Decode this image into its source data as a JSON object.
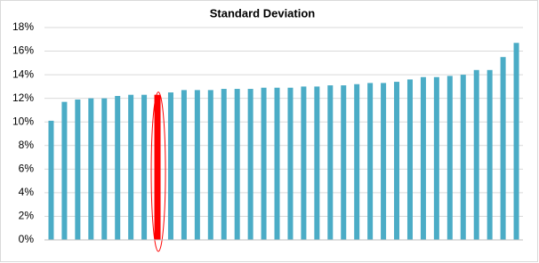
{
  "chart_data": {
    "type": "bar",
    "title": "Standard Deviation",
    "categories": [
      null,
      null,
      null,
      null,
      null,
      null,
      null,
      null,
      null,
      null,
      null,
      null,
      null,
      null,
      null,
      null,
      null,
      null,
      null,
      null,
      null,
      null,
      null,
      null,
      null,
      null,
      null,
      null,
      null,
      null,
      null,
      null,
      null,
      null,
      null,
      null
    ],
    "values": [
      10.1,
      11.7,
      11.9,
      12.0,
      12.0,
      12.2,
      12.3,
      12.3,
      12.3,
      12.5,
      12.7,
      12.7,
      12.7,
      12.8,
      12.8,
      12.8,
      12.9,
      12.9,
      12.9,
      13.0,
      13.0,
      13.1,
      13.1,
      13.2,
      13.3,
      13.3,
      13.4,
      13.6,
      13.8,
      13.8,
      13.9,
      14.0,
      14.4,
      14.4,
      15.5,
      16.7
    ],
    "colors": [
      "#4bacc6",
      "#4bacc6",
      "#4bacc6",
      "#4bacc6",
      "#4bacc6",
      "#4bacc6",
      "#4bacc6",
      "#4bacc6",
      "#ff0000",
      "#4bacc6",
      "#4bacc6",
      "#4bacc6",
      "#4bacc6",
      "#4bacc6",
      "#4bacc6",
      "#4bacc6",
      "#4bacc6",
      "#4bacc6",
      "#4bacc6",
      "#4bacc6",
      "#4bacc6",
      "#4bacc6",
      "#4bacc6",
      "#4bacc6",
      "#4bacc6",
      "#4bacc6",
      "#4bacc6",
      "#4bacc6",
      "#4bacc6",
      "#4bacc6",
      "#4bacc6",
      "#4bacc6",
      "#4bacc6",
      "#4bacc6",
      "#4bacc6",
      "#4bacc6"
    ],
    "ylim": [
      0,
      18
    ],
    "yticks": [
      {
        "value": 0,
        "label": "0%"
      },
      {
        "value": 2,
        "label": "2%"
      },
      {
        "value": 4,
        "label": "4%"
      },
      {
        "value": 6,
        "label": "6%"
      },
      {
        "value": 8,
        "label": "8%"
      },
      {
        "value": 10,
        "label": "10%"
      },
      {
        "value": 12,
        "label": "12%"
      },
      {
        "value": 14,
        "label": "14%"
      },
      {
        "value": 16,
        "label": "16%"
      },
      {
        "value": 18,
        "label": "18%"
      }
    ],
    "grid": true
  }
}
